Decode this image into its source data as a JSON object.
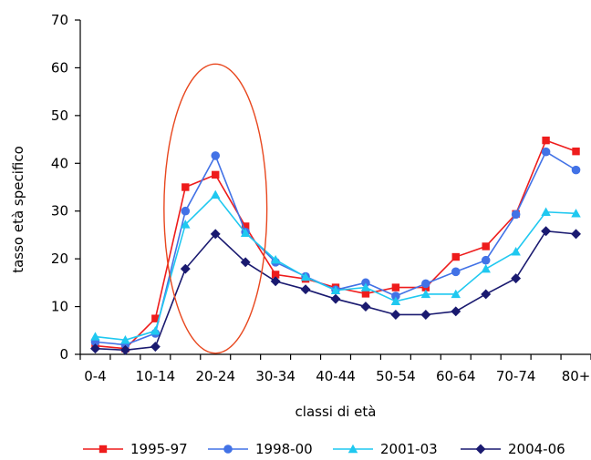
{
  "chart_data": {
    "type": "line",
    "categories": [
      "0-4",
      "5-9",
      "10-14",
      "15-19",
      "20-24",
      "25-29",
      "30-34",
      "35-39",
      "40-44",
      "45-49",
      "50-54",
      "55-59",
      "60-64",
      "65-69",
      "70-74",
      "75-79",
      "80+"
    ],
    "tick_labels": [
      "0-4",
      "",
      "10-14",
      "",
      "20-24",
      "",
      "30-34",
      "",
      "40-44",
      "",
      "50-54",
      "",
      "60-64",
      "",
      "70-74",
      "",
      "80+"
    ],
    "xlabel": "classi di età",
    "ylabel": "tasso età specifico",
    "ylim": [
      0,
      70
    ],
    "yticks": [
      0,
      10,
      20,
      30,
      40,
      50,
      60,
      70
    ],
    "grid": false,
    "legend_position": "bottom",
    "highlight": {
      "shape": "ellipse",
      "around": [
        "15-19",
        "20-24",
        "25-29"
      ],
      "color": "#E8471E"
    },
    "series": [
      {
        "name": "1995-97",
        "color": "#EE1C1C",
        "marker": "square",
        "values": [
          1.8,
          1.2,
          7.5,
          35.0,
          37.6,
          26.8,
          16.7,
          15.8,
          14.0,
          12.7,
          14.0,
          14.0,
          20.4,
          22.6,
          29.4,
          44.8,
          42.5
        ]
      },
      {
        "name": "1998-00",
        "color": "#4272E6",
        "marker": "circle",
        "values": [
          2.6,
          2.0,
          4.4,
          30.0,
          41.6,
          25.6,
          19.3,
          16.3,
          13.5,
          15.0,
          12.2,
          14.8,
          17.3,
          19.7,
          29.3,
          42.4,
          38.6
        ]
      },
      {
        "name": "2001-03",
        "color": "#1FC8F0",
        "marker": "triangle",
        "values": [
          3.7,
          3.0,
          4.9,
          27.2,
          33.4,
          25.4,
          19.8,
          16.2,
          13.4,
          14.0,
          11.1,
          12.6,
          12.6,
          17.9,
          21.5,
          29.8,
          29.5
        ]
      },
      {
        "name": "2004-06",
        "color": "#1A1A70",
        "marker": "diamond",
        "values": [
          1.2,
          0.9,
          1.6,
          17.9,
          25.2,
          19.3,
          15.3,
          13.6,
          11.6,
          10.0,
          8.3,
          8.3,
          9.0,
          12.6,
          15.9,
          25.8,
          25.2
        ]
      }
    ]
  }
}
